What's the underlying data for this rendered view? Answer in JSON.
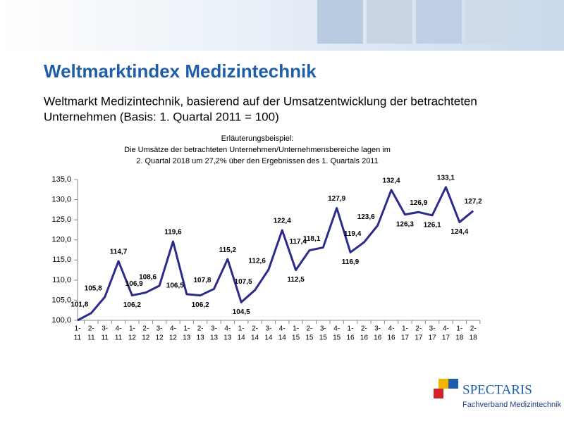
{
  "slide": {
    "title": "Weltmarktindex Medizintechnik",
    "subtitle": [
      "Weltmarkt Medizintechnik, basierend auf der Umsatzentwicklung der betrachteten",
      "Unternehmen (Basis: 1. Quartal 2011 = 100)"
    ],
    "logo": {
      "name": "SPECTARIS",
      "tagline": "Fachverband Medizintechnik"
    }
  },
  "chart_data": {
    "type": "line",
    "title": [
      "Erläuterungsbeispiel:",
      "Die Umsätze der betrachteten Unternehmen/Unternehmensbereiche lagen im",
      "2. Quartal 2018 um 27,2% über den Ergebnissen des 1. Quartals 2011"
    ],
    "categories": [
      [
        "1-",
        "11"
      ],
      [
        "2-",
        "11"
      ],
      [
        "3-",
        "11"
      ],
      [
        "4-",
        "11"
      ],
      [
        "1-",
        "12"
      ],
      [
        "2-",
        "12"
      ],
      [
        "3-",
        "12"
      ],
      [
        "4-",
        "12"
      ],
      [
        "1-",
        "13"
      ],
      [
        "2-",
        "13"
      ],
      [
        "3-",
        "13"
      ],
      [
        "4-",
        "13"
      ],
      [
        "1-",
        "14"
      ],
      [
        "2-",
        "14"
      ],
      [
        "3-",
        "14"
      ],
      [
        "4-",
        "14"
      ],
      [
        "1-",
        "15"
      ],
      [
        "2-",
        "15"
      ],
      [
        "3-",
        "15"
      ],
      [
        "4-",
        "15"
      ],
      [
        "1-",
        "16"
      ],
      [
        "2-",
        "16"
      ],
      [
        "3-",
        "16"
      ],
      [
        "4-",
        "16"
      ],
      [
        "1-",
        "17"
      ],
      [
        "2-",
        "17"
      ],
      [
        "3-",
        "17"
      ],
      [
        "4-",
        "17"
      ],
      [
        "1-",
        "18"
      ],
      [
        "2-",
        "18"
      ]
    ],
    "values": [
      100,
      101.8,
      105.8,
      114.7,
      106.2,
      106.9,
      108.6,
      119.6,
      106.5,
      106.2,
      107.8,
      115.2,
      104.5,
      107.5,
      112.6,
      122.4,
      112.5,
      117.4,
      118.1,
      127.9,
      116.9,
      119.4,
      123.6,
      132.4,
      126.3,
      126.9,
      126.1,
      133.1,
      124.4,
      127.2
    ],
    "value_labels": [
      null,
      "101,8",
      "105,8",
      "114,7",
      "106,2",
      "106,9",
      "108,6",
      "119,6",
      "106,5",
      "106,2",
      "107,8",
      "115,2",
      "104,5",
      "107,5",
      "112,6",
      "122,4",
      "112,5",
      "117,4",
      "118,1",
      "127,9",
      "116,9",
      "119,4",
      "123,6",
      "132,4",
      "126,3",
      "126,9",
      "126,1",
      "133,1",
      "124,4",
      "127,2"
    ],
    "color": "#2b2b8a",
    "ylim": [
      100,
      135
    ],
    "yticks": [
      {
        "value": 100,
        "label": "100,0"
      },
      {
        "value": 105,
        "label": "105,0"
      },
      {
        "value": 110,
        "label": "110,0"
      },
      {
        "value": 115,
        "label": "115,0"
      },
      {
        "value": 120,
        "label": "120,0"
      },
      {
        "value": 125,
        "label": "125,0"
      },
      {
        "value": 130,
        "label": "130,0"
      },
      {
        "value": 135,
        "label": "135,0"
      }
    ]
  }
}
